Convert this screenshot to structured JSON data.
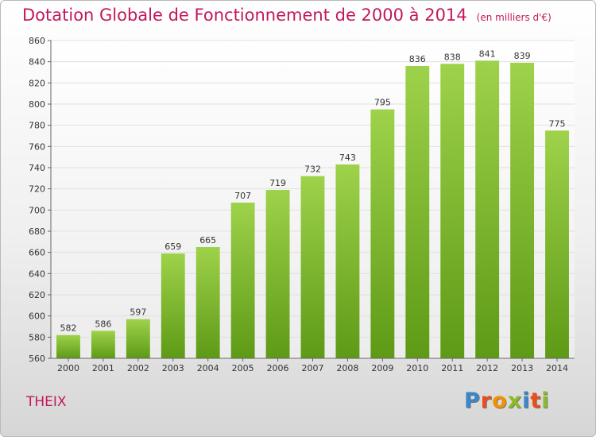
{
  "header": {
    "title": "Dotation Globale de Fonctionnement de 2000 à 2014",
    "subtitle": "(en milliers d'€)"
  },
  "footer": {
    "commune": "THEIX",
    "logo_text": "Proxiti"
  },
  "colors": {
    "title": "#c2185b",
    "bar_top": "#9ed24a",
    "bar_bottom": "#5e9a16",
    "grid": "#e0e0e0"
  },
  "chart_data": {
    "type": "bar",
    "title": "Dotation Globale de Fonctionnement de 2000 à 2014",
    "subtitle": "(en milliers d'€)",
    "xlabel": "",
    "ylabel": "",
    "categories": [
      "2000",
      "2001",
      "2002",
      "2003",
      "2004",
      "2005",
      "2006",
      "2007",
      "2008",
      "2009",
      "2010",
      "2011",
      "2012",
      "2013",
      "2014"
    ],
    "values": [
      582,
      586,
      597,
      659,
      665,
      707,
      719,
      732,
      743,
      795,
      836,
      838,
      841,
      839,
      775
    ],
    "ylim": [
      560,
      860
    ],
    "yticks": [
      560,
      580,
      600,
      620,
      640,
      660,
      680,
      700,
      720,
      740,
      760,
      780,
      800,
      820,
      840,
      860
    ],
    "grid": true,
    "legend": "none"
  }
}
